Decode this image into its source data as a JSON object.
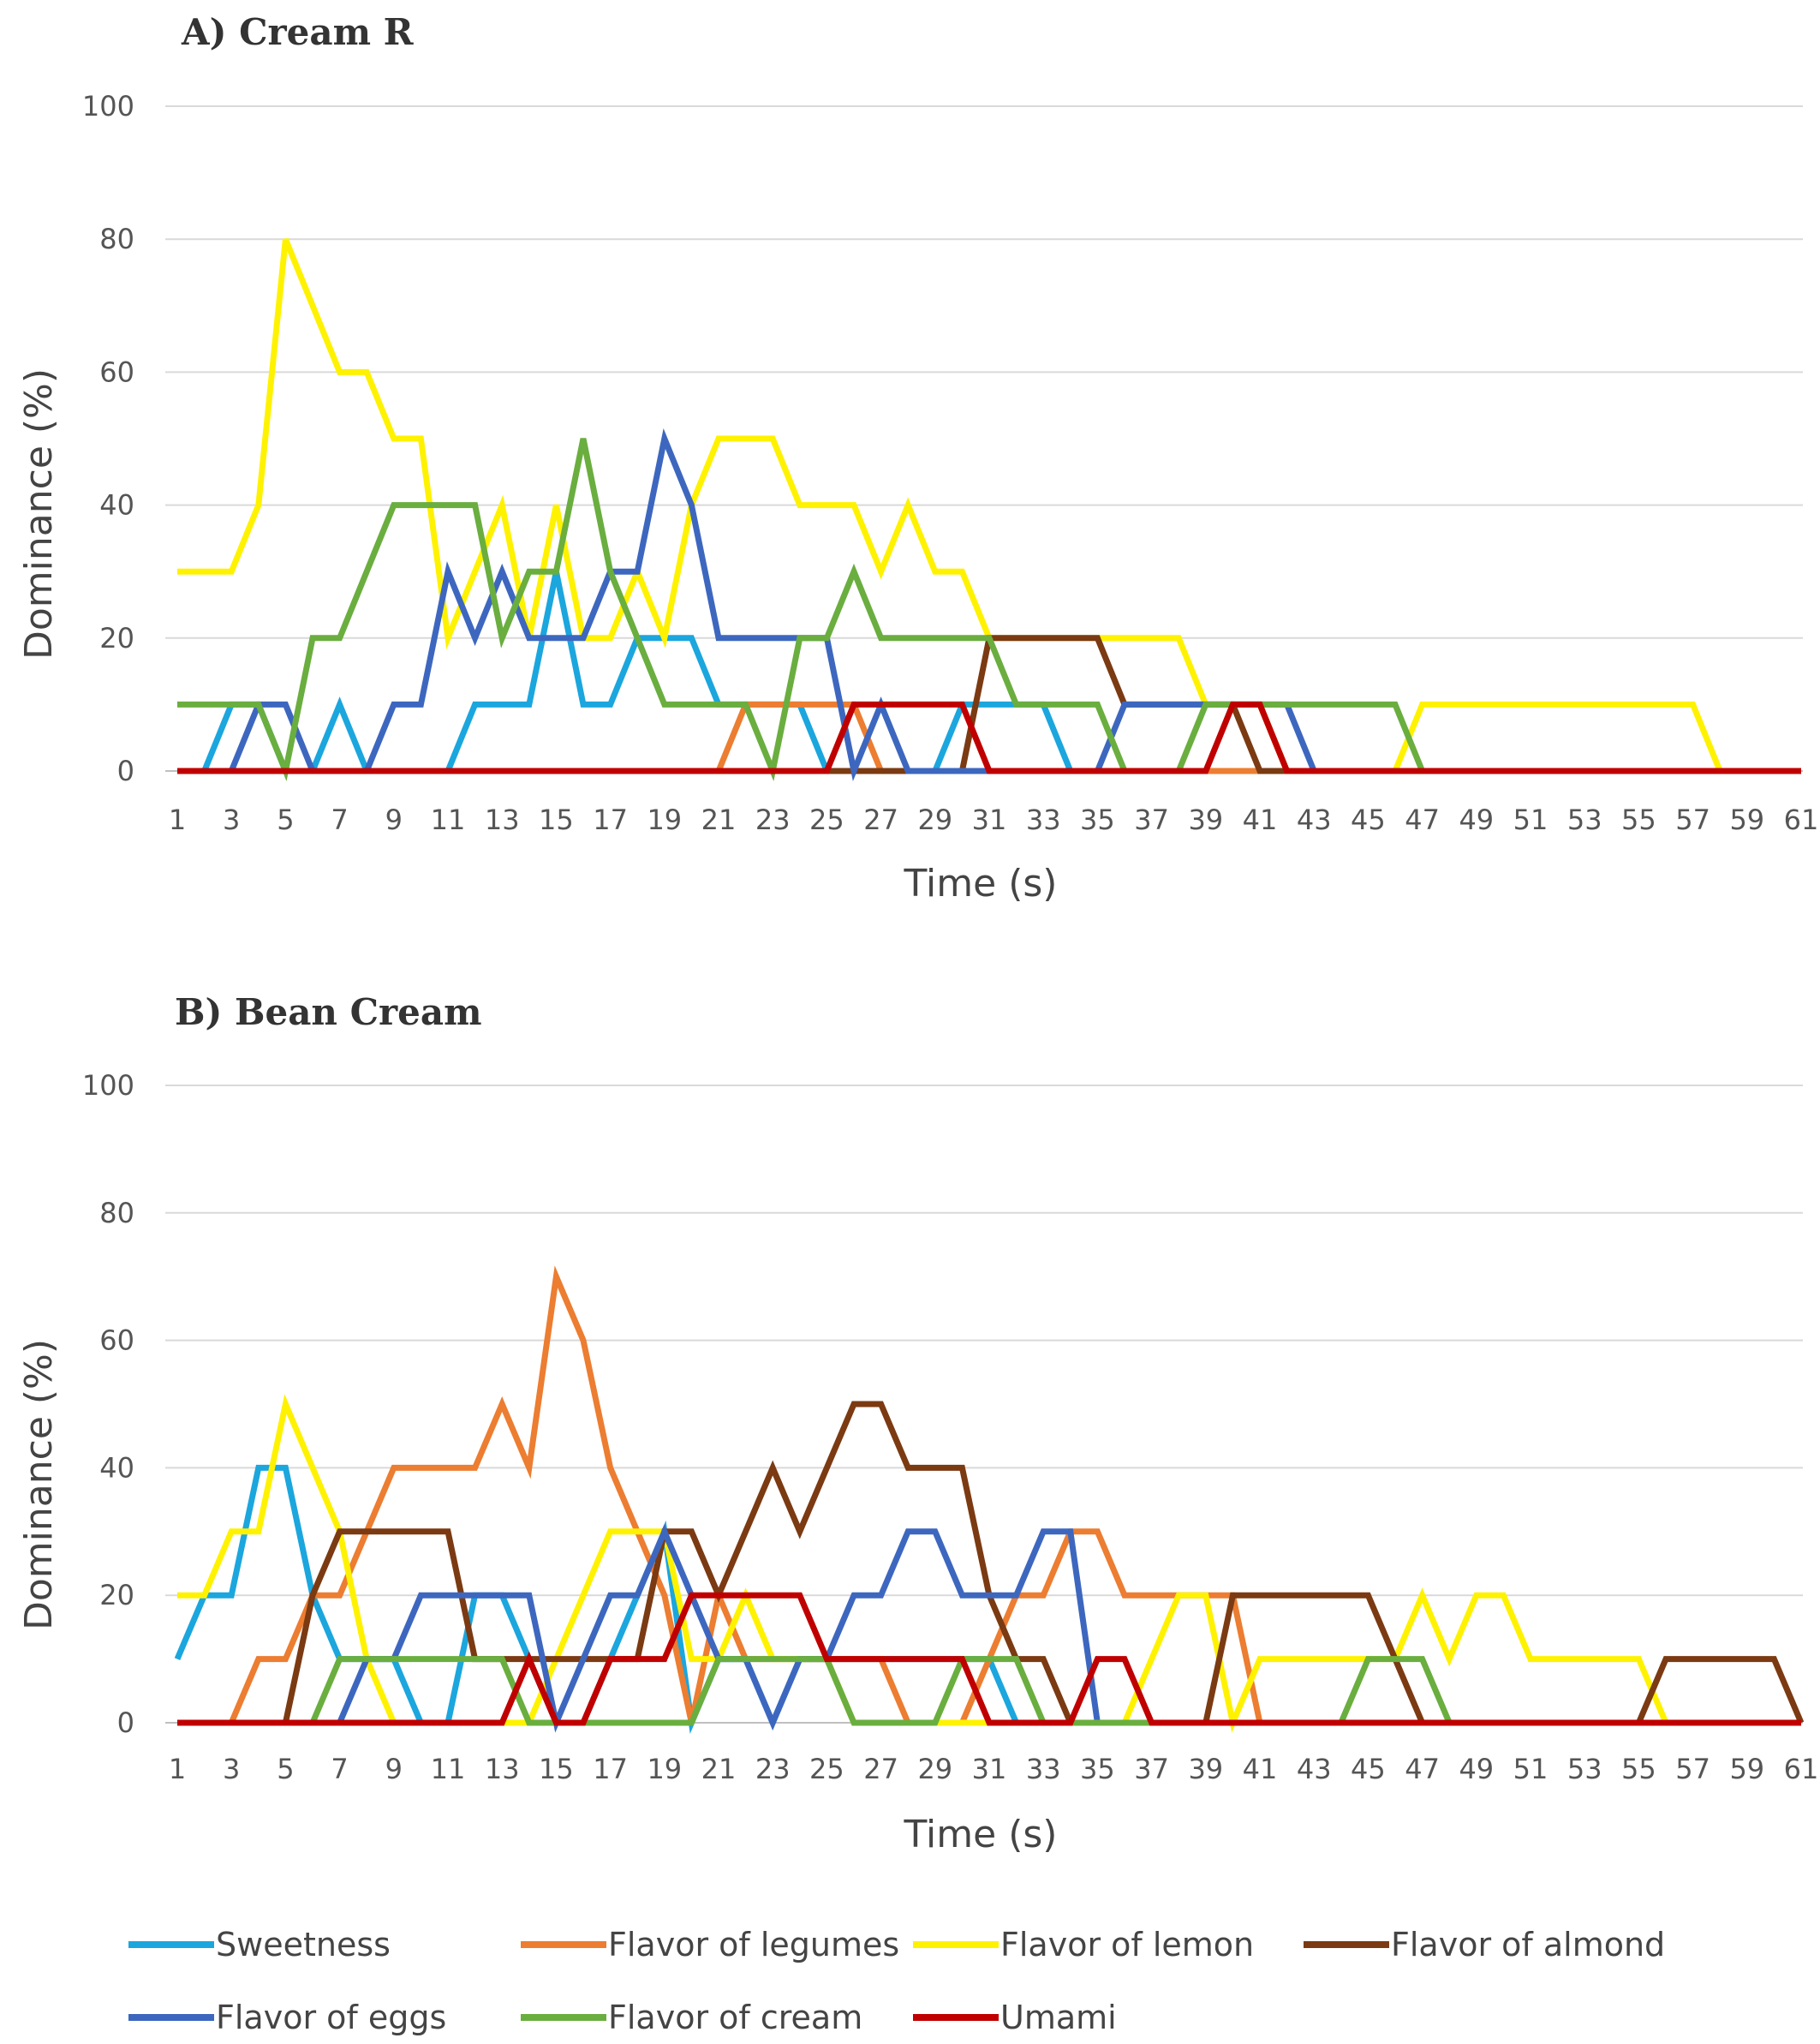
{
  "legend": [
    {
      "name": "Sweetness",
      "color": "#1BA6DE"
    },
    {
      "name": "Flavor of legumes",
      "color": "#EC7D31"
    },
    {
      "name": "Flavor of lemon",
      "color": "#FFF200"
    },
    {
      "name": "Flavor of almond",
      "color": "#7B3A12"
    },
    {
      "name": "Flavor of eggs",
      "color": "#3D67BF"
    },
    {
      "name": "Flavor of cream",
      "color": "#6AAE3F"
    },
    {
      "name": "Umami",
      "color": "#C00000"
    }
  ],
  "chart_data": [
    {
      "type": "line",
      "title": "A) Cream R",
      "xlabel": "Time (s)",
      "ylabel": "Dominance (%)",
      "ylim": [
        0,
        100
      ],
      "yticks": [
        "0",
        "20",
        "40",
        "60",
        "80",
        "100"
      ],
      "xticks": [
        "1",
        "3",
        "5",
        "7",
        "9",
        "11",
        "13",
        "15",
        "17",
        "19",
        "21",
        "23",
        "25",
        "27",
        "29",
        "31",
        "33",
        "35",
        "37",
        "39",
        "41",
        "43",
        "45",
        "47",
        "49",
        "51",
        "53",
        "55",
        "57",
        "59",
        "61"
      ],
      "grid": true,
      "x_start": 1,
      "series": [
        {
          "name": "Sweetness",
          "color": "#1BA6DE",
          "values": [
            0,
            0,
            10,
            10,
            0,
            0,
            10,
            0,
            0,
            0,
            0,
            10,
            10,
            10,
            30,
            10,
            10,
            20,
            20,
            20,
            10,
            10,
            10,
            10,
            0,
            0,
            0,
            0,
            0,
            10,
            10,
            10,
            10,
            0,
            0,
            0,
            0,
            0,
            0,
            0,
            0,
            0,
            0,
            0,
            0,
            0,
            0,
            0,
            0,
            0,
            0,
            0,
            0,
            0,
            0,
            0,
            0,
            0,
            0,
            0,
            0
          ]
        },
        {
          "name": "Flavor of legumes",
          "color": "#EC7D31",
          "values": [
            0,
            0,
            0,
            0,
            0,
            0,
            0,
            0,
            0,
            0,
            0,
            0,
            0,
            0,
            0,
            0,
            0,
            0,
            0,
            0,
            0,
            10,
            10,
            10,
            10,
            10,
            0,
            0,
            0,
            0,
            0,
            0,
            0,
            0,
            0,
            0,
            0,
            0,
            0,
            0,
            0,
            0,
            0,
            0,
            0,
            0,
            0,
            0,
            0,
            0,
            0,
            0,
            0,
            0,
            0,
            0,
            0,
            0,
            0,
            0,
            0
          ]
        },
        {
          "name": "Flavor of lemon",
          "color": "#FFF200",
          "values": [
            30,
            30,
            30,
            40,
            80,
            70,
            60,
            60,
            50,
            50,
            20,
            30,
            40,
            20,
            40,
            20,
            20,
            30,
            20,
            40,
            50,
            50,
            50,
            40,
            40,
            40,
            30,
            40,
            30,
            30,
            20,
            20,
            20,
            20,
            20,
            20,
            20,
            20,
            10,
            10,
            10,
            0,
            0,
            0,
            0,
            0,
            10,
            10,
            10,
            10,
            10,
            10,
            10,
            10,
            10,
            10,
            10,
            0,
            0,
            0,
            0
          ]
        },
        {
          "name": "Flavor of almond",
          "color": "#7B3A12",
          "values": [
            0,
            0,
            0,
            0,
            0,
            0,
            0,
            0,
            0,
            0,
            0,
            0,
            0,
            0,
            0,
            0,
            0,
            0,
            0,
            0,
            0,
            0,
            0,
            0,
            0,
            0,
            0,
            0,
            0,
            0,
            20,
            20,
            20,
            20,
            20,
            10,
            10,
            10,
            10,
            10,
            0,
            0,
            0,
            0,
            0,
            0,
            0,
            0,
            0,
            0,
            0,
            0,
            0,
            0,
            0,
            0,
            0,
            0,
            0,
            0,
            0
          ]
        },
        {
          "name": "Flavor of eggs",
          "color": "#3D67BF",
          "values": [
            0,
            0,
            0,
            10,
            10,
            0,
            0,
            0,
            10,
            10,
            30,
            20,
            30,
            20,
            20,
            20,
            30,
            30,
            50,
            40,
            20,
            20,
            20,
            20,
            20,
            0,
            10,
            0,
            0,
            0,
            0,
            0,
            0,
            0,
            0,
            10,
            10,
            10,
            10,
            10,
            10,
            10,
            0,
            0,
            0,
            0,
            0,
            0,
            0,
            0,
            0,
            0,
            0,
            0,
            0,
            0,
            0,
            0,
            0,
            0,
            0
          ]
        },
        {
          "name": "Flavor of cream",
          "color": "#6AAE3F",
          "values": [
            10,
            10,
            10,
            10,
            0,
            20,
            20,
            30,
            40,
            40,
            40,
            40,
            20,
            30,
            30,
            50,
            30,
            20,
            10,
            10,
            10,
            10,
            0,
            20,
            20,
            30,
            20,
            20,
            20,
            20,
            20,
            10,
            10,
            10,
            10,
            0,
            0,
            0,
            10,
            10,
            10,
            10,
            10,
            10,
            10,
            10,
            0,
            0,
            0,
            0,
            0,
            0,
            0,
            0,
            0,
            0,
            0,
            0,
            0,
            0,
            0
          ]
        },
        {
          "name": "Umami",
          "color": "#C00000",
          "values": [
            0,
            0,
            0,
            0,
            0,
            0,
            0,
            0,
            0,
            0,
            0,
            0,
            0,
            0,
            0,
            0,
            0,
            0,
            0,
            0,
            0,
            0,
            0,
            0,
            0,
            10,
            10,
            10,
            10,
            10,
            0,
            0,
            0,
            0,
            0,
            0,
            0,
            0,
            0,
            10,
            10,
            0,
            0,
            0,
            0,
            0,
            0,
            0,
            0,
            0,
            0,
            0,
            0,
            0,
            0,
            0,
            0,
            0,
            0,
            0,
            0
          ]
        }
      ]
    },
    {
      "type": "line",
      "title": "B) Bean Cream",
      "xlabel": "Time (s)",
      "ylabel": "Dominance (%)",
      "ylim": [
        0,
        100
      ],
      "yticks": [
        "0",
        "20",
        "40",
        "60",
        "80",
        "100"
      ],
      "xticks": [
        "1",
        "3",
        "5",
        "7",
        "9",
        "11",
        "13",
        "15",
        "17",
        "19",
        "21",
        "23",
        "25",
        "27",
        "29",
        "31",
        "33",
        "35",
        "37",
        "39",
        "41",
        "43",
        "45",
        "47",
        "49",
        "51",
        "53",
        "55",
        "57",
        "59",
        "61"
      ],
      "grid": true,
      "x_start": 1,
      "series": [
        {
          "name": "Sweetness",
          "color": "#1BA6DE",
          "values": [
            10,
            20,
            20,
            40,
            40,
            20,
            10,
            10,
            10,
            0,
            0,
            20,
            20,
            10,
            0,
            0,
            10,
            20,
            30,
            0,
            10,
            10,
            0,
            10,
            10,
            10,
            10,
            10,
            10,
            10,
            10,
            0,
            0,
            0,
            0,
            0,
            0,
            0,
            0,
            0,
            0,
            0,
            0,
            0,
            0,
            0,
            0,
            0,
            0,
            0,
            0,
            0,
            0,
            0,
            0,
            0,
            0,
            0,
            0,
            0,
            0
          ]
        },
        {
          "name": "Flavor of legumes",
          "color": "#EC7D31",
          "values": [
            0,
            0,
            0,
            10,
            10,
            20,
            20,
            30,
            40,
            40,
            40,
            40,
            50,
            40,
            70,
            60,
            40,
            30,
            20,
            0,
            20,
            10,
            10,
            10,
            10,
            10,
            10,
            0,
            0,
            0,
            10,
            20,
            20,
            30,
            30,
            20,
            20,
            20,
            20,
            20,
            0,
            0,
            0,
            0,
            0,
            0,
            0,
            0,
            0,
            0,
            0,
            0,
            0,
            0,
            0,
            0,
            0,
            0,
            0,
            0,
            0
          ]
        },
        {
          "name": "Flavor of lemon",
          "color": "#FFF200",
          "values": [
            20,
            20,
            30,
            30,
            50,
            40,
            30,
            10,
            0,
            0,
            0,
            0,
            0,
            0,
            10,
            20,
            30,
            30,
            30,
            10,
            10,
            20,
            10,
            10,
            10,
            0,
            0,
            0,
            0,
            0,
            0,
            0,
            0,
            0,
            0,
            0,
            10,
            20,
            20,
            0,
            10,
            10,
            10,
            10,
            10,
            10,
            20,
            10,
            20,
            20,
            10,
            10,
            10,
            10,
            10,
            0,
            0,
            0,
            0,
            0,
            0
          ]
        },
        {
          "name": "Flavor of almond",
          "color": "#7B3A12",
          "values": [
            0,
            0,
            0,
            0,
            0,
            20,
            30,
            30,
            30,
            30,
            30,
            10,
            10,
            10,
            10,
            10,
            10,
            10,
            30,
            30,
            20,
            30,
            40,
            30,
            40,
            50,
            50,
            40,
            40,
            40,
            20,
            10,
            10,
            0,
            0,
            0,
            0,
            0,
            0,
            20,
            20,
            20,
            20,
            20,
            20,
            10,
            0,
            0,
            0,
            0,
            0,
            0,
            0,
            0,
            0,
            10,
            10,
            10,
            10,
            10,
            0
          ]
        },
        {
          "name": "Flavor of eggs",
          "color": "#3D67BF",
          "values": [
            0,
            0,
            0,
            0,
            0,
            0,
            0,
            10,
            10,
            20,
            20,
            20,
            20,
            20,
            0,
            10,
            20,
            20,
            30,
            20,
            10,
            10,
            0,
            10,
            10,
            20,
            20,
            30,
            30,
            20,
            20,
            20,
            30,
            30,
            0,
            0,
            0,
            0,
            0,
            0,
            0,
            0,
            0,
            0,
            0,
            0,
            0,
            0,
            0,
            0,
            0,
            0,
            0,
            0,
            0,
            0,
            0,
            0,
            0,
            0,
            0
          ]
        },
        {
          "name": "Flavor of cream",
          "color": "#6AAE3F",
          "values": [
            0,
            0,
            0,
            0,
            0,
            0,
            10,
            10,
            10,
            10,
            10,
            10,
            10,
            0,
            0,
            0,
            0,
            0,
            0,
            0,
            10,
            10,
            10,
            10,
            10,
            0,
            0,
            0,
            0,
            10,
            10,
            10,
            0,
            0,
            0,
            0,
            0,
            0,
            0,
            0,
            0,
            0,
            0,
            0,
            10,
            10,
            10,
            0,
            0,
            0,
            0,
            0,
            0,
            0,
            0,
            0,
            0,
            0,
            0,
            0,
            0
          ]
        },
        {
          "name": "Umami",
          "color": "#C00000",
          "values": [
            0,
            0,
            0,
            0,
            0,
            0,
            0,
            0,
            0,
            0,
            0,
            0,
            0,
            10,
            0,
            0,
            10,
            10,
            10,
            20,
            20,
            20,
            20,
            20,
            10,
            10,
            10,
            10,
            10,
            10,
            0,
            0,
            0,
            0,
            10,
            10,
            0,
            0,
            0,
            0,
            0,
            0,
            0,
            0,
            0,
            0,
            0,
            0,
            0,
            0,
            0,
            0,
            0,
            0,
            0,
            0,
            0,
            0,
            0,
            0,
            0
          ]
        }
      ]
    }
  ]
}
